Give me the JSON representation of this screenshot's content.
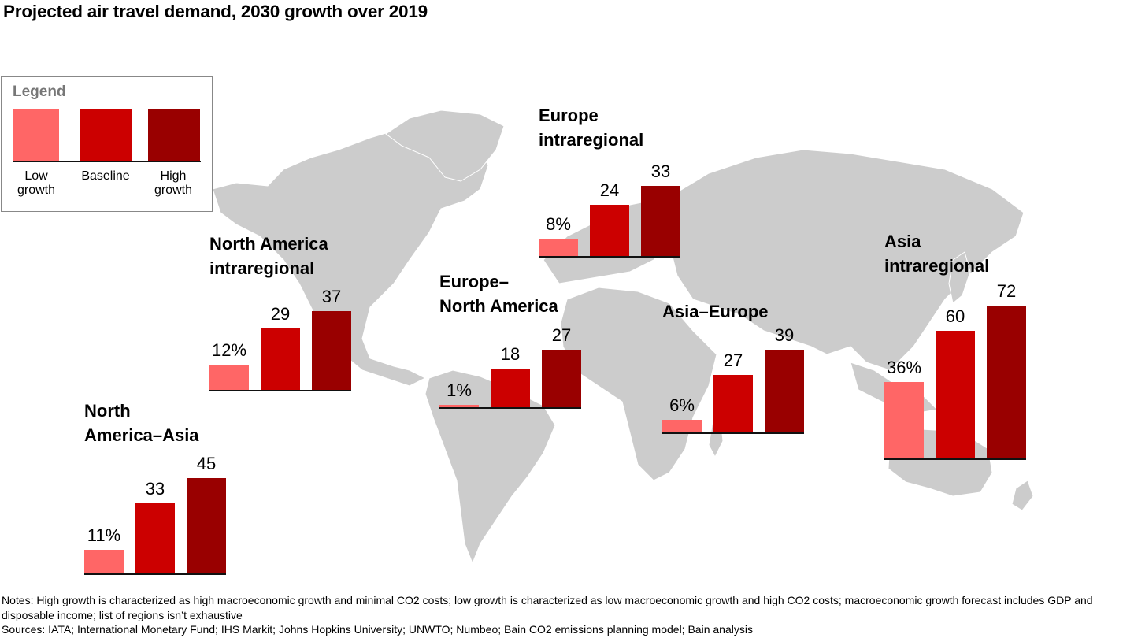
{
  "title": "Projected air travel demand, 2030 growth over 2019",
  "legend": {
    "title": "Legend",
    "items": [
      {
        "label_line1": "Low",
        "label_line2": "growth",
        "color": "#ff6666"
      },
      {
        "label_line1": "Baseline",
        "label_line2": "",
        "color": "#cc0000"
      },
      {
        "label_line1": "High",
        "label_line2": "growth",
        "color": "#990000"
      }
    ]
  },
  "colors": {
    "low": "#ff6666",
    "baseline": "#cc0000",
    "high": "#990000",
    "map": "#cccccc"
  },
  "chart_data": {
    "type": "bar",
    "title": "Projected air travel demand, 2030 growth over 2019",
    "unit": "%",
    "series_names": [
      "Low growth",
      "Baseline",
      "High growth"
    ],
    "groups": [
      {
        "id": "na-asia",
        "title_line1": "North",
        "title_line2": "America–Asia",
        "values": [
          11,
          33,
          45
        ],
        "labels": [
          "11%",
          "33",
          "45"
        ]
      },
      {
        "id": "na-intra",
        "title_line1": "North America",
        "title_line2": "intraregional",
        "values": [
          12,
          29,
          37
        ],
        "labels": [
          "12%",
          "29",
          "37"
        ]
      },
      {
        "id": "eu-na",
        "title_line1": "Europe–",
        "title_line2": "North America",
        "values": [
          1,
          18,
          27
        ],
        "labels": [
          "1%",
          "18",
          "27"
        ]
      },
      {
        "id": "eu-intra",
        "title_line1": "Europe",
        "title_line2": "intraregional",
        "values": [
          8,
          24,
          33
        ],
        "labels": [
          "8%",
          "24",
          "33"
        ]
      },
      {
        "id": "asia-eu",
        "title_line1": "Asia–Europe",
        "title_line2": "",
        "values": [
          6,
          27,
          39
        ],
        "labels": [
          "6%",
          "27",
          "39"
        ]
      },
      {
        "id": "asia-intra",
        "title_line1": "Asia",
        "title_line2": "intraregional",
        "values": [
          36,
          60,
          72
        ],
        "labels": [
          "36%",
          "60",
          "72"
        ]
      }
    ],
    "xlabel": "",
    "ylabel": "",
    "grid": false,
    "legend_position": "top-left"
  },
  "notes": {
    "line1": "Notes: High growth is characterized as high macroeconomic growth and minimal CO2 costs; low growth is characterized as low macroeconomic growth and high CO2 costs; macroeconomic growth forecast includes GDP and disposable income; list of regions isn’t exhaustive",
    "line2": "Sources: IATA; International Monetary Fund; IHS Markit; Johns Hopkins University; UNWTO; Numbeo; Bain CO2 emissions planning model; Bain analysis"
  }
}
